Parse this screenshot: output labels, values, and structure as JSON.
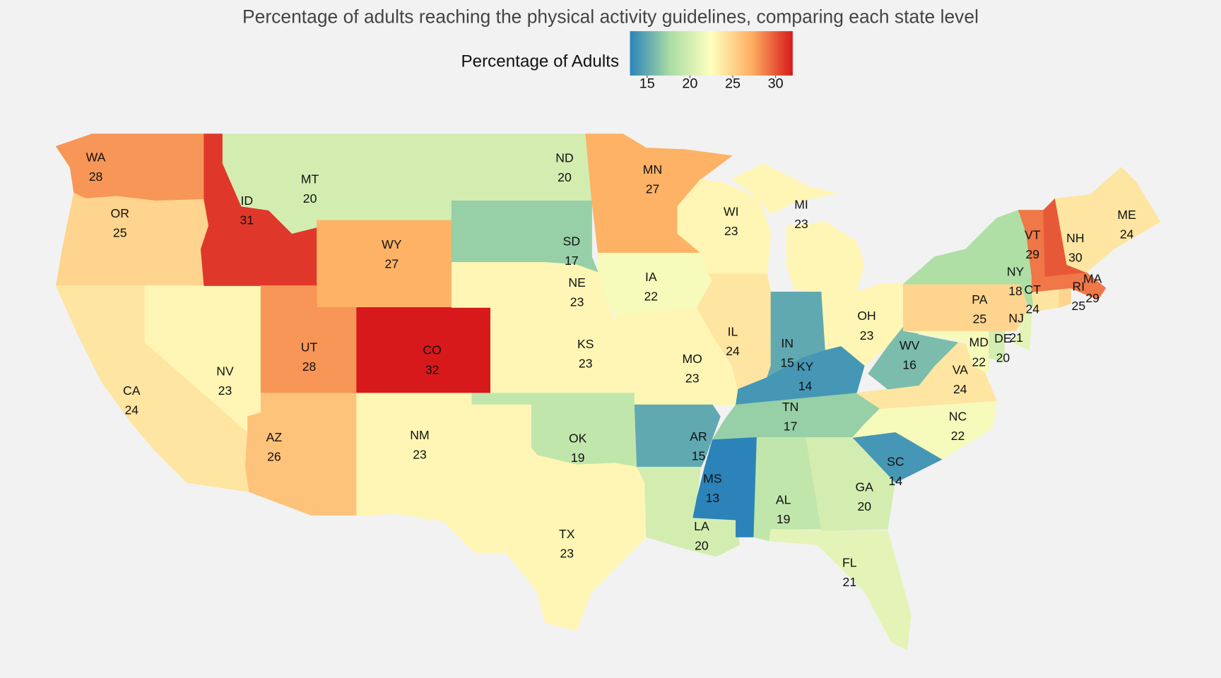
{
  "chart_data": {
    "type": "choropleth",
    "title": "Percentage of adults reaching the physical activity guidelines, comparing each state level",
    "colorbar": {
      "title": "Percentage of Adults",
      "range": [
        13,
        32
      ],
      "ticks": [
        15,
        20,
        25,
        30
      ],
      "colorscale": [
        "#2b83ba",
        "#abdda4",
        "#ffffbf",
        "#fdae61",
        "#d7191c"
      ]
    },
    "categories": [
      "WA",
      "OR",
      "CA",
      "NV",
      "ID",
      "MT",
      "WY",
      "UT",
      "AZ",
      "CO",
      "NM",
      "ND",
      "SD",
      "NE",
      "KS",
      "OK",
      "TX",
      "MN",
      "IA",
      "MO",
      "AR",
      "LA",
      "WI",
      "IL",
      "MI",
      "IN",
      "OH",
      "KY",
      "TN",
      "MS",
      "AL",
      "GA",
      "FL",
      "SC",
      "NC",
      "VA",
      "WV",
      "MD",
      "DE",
      "NJ",
      "PA",
      "NY",
      "CT",
      "RI",
      "MA",
      "VT",
      "NH",
      "ME"
    ],
    "values": [
      28,
      25,
      24,
      23,
      31,
      20,
      27,
      28,
      26,
      32,
      23,
      20,
      17,
      23,
      23,
      19,
      23,
      27,
      22,
      23,
      15,
      20,
      23,
      24,
      23,
      15,
      23,
      14,
      17,
      13,
      19,
      20,
      21,
      14,
      22,
      24,
      16,
      22,
      20,
      21,
      25,
      18,
      24,
      25,
      29,
      29,
      30,
      24
    ]
  }
}
